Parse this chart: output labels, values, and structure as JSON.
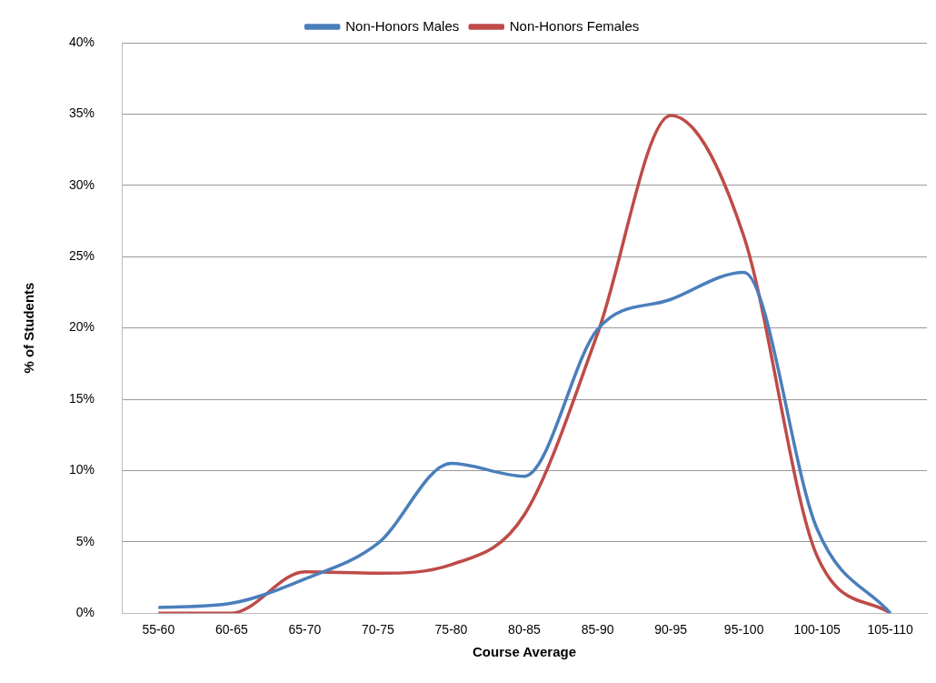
{
  "chart_data": {
    "type": "line",
    "xlabel": "Course Average",
    "ylabel": "% of Students",
    "categories": [
      "55-60",
      "60-65",
      "65-70",
      "70-75",
      "75-80",
      "80-85",
      "85-90",
      "90-95",
      "95-100",
      "100-105",
      "105-110"
    ],
    "series": [
      {
        "name": "Non-Honors Males",
        "color": "#4a7ebb",
        "values": [
          0.4,
          0.7,
          2.4,
          4.9,
          10.5,
          9.6,
          19.9,
          22.0,
          23.9,
          5.9,
          0
        ]
      },
      {
        "name": "Non-Honors Females",
        "color": "#be4b48",
        "values": [
          0,
          0,
          2.9,
          2.8,
          3.4,
          6.9,
          19.6,
          34.9,
          26.4,
          4.0,
          0
        ]
      }
    ],
    "ylim": [
      0,
      40
    ],
    "yticks": [
      {
        "value": 0,
        "label": "0%"
      },
      {
        "value": 5,
        "label": "5%"
      },
      {
        "value": 10,
        "label": "10%"
      },
      {
        "value": 15,
        "label": "15%"
      },
      {
        "value": 20,
        "label": "20%"
      },
      {
        "value": 25,
        "label": "25%"
      },
      {
        "value": 30,
        "label": "30%"
      },
      {
        "value": 35,
        "label": "35%"
      },
      {
        "value": 40,
        "label": "40%"
      }
    ],
    "grid": "y",
    "legend": "top",
    "marker": "none",
    "line_style": "solid"
  }
}
